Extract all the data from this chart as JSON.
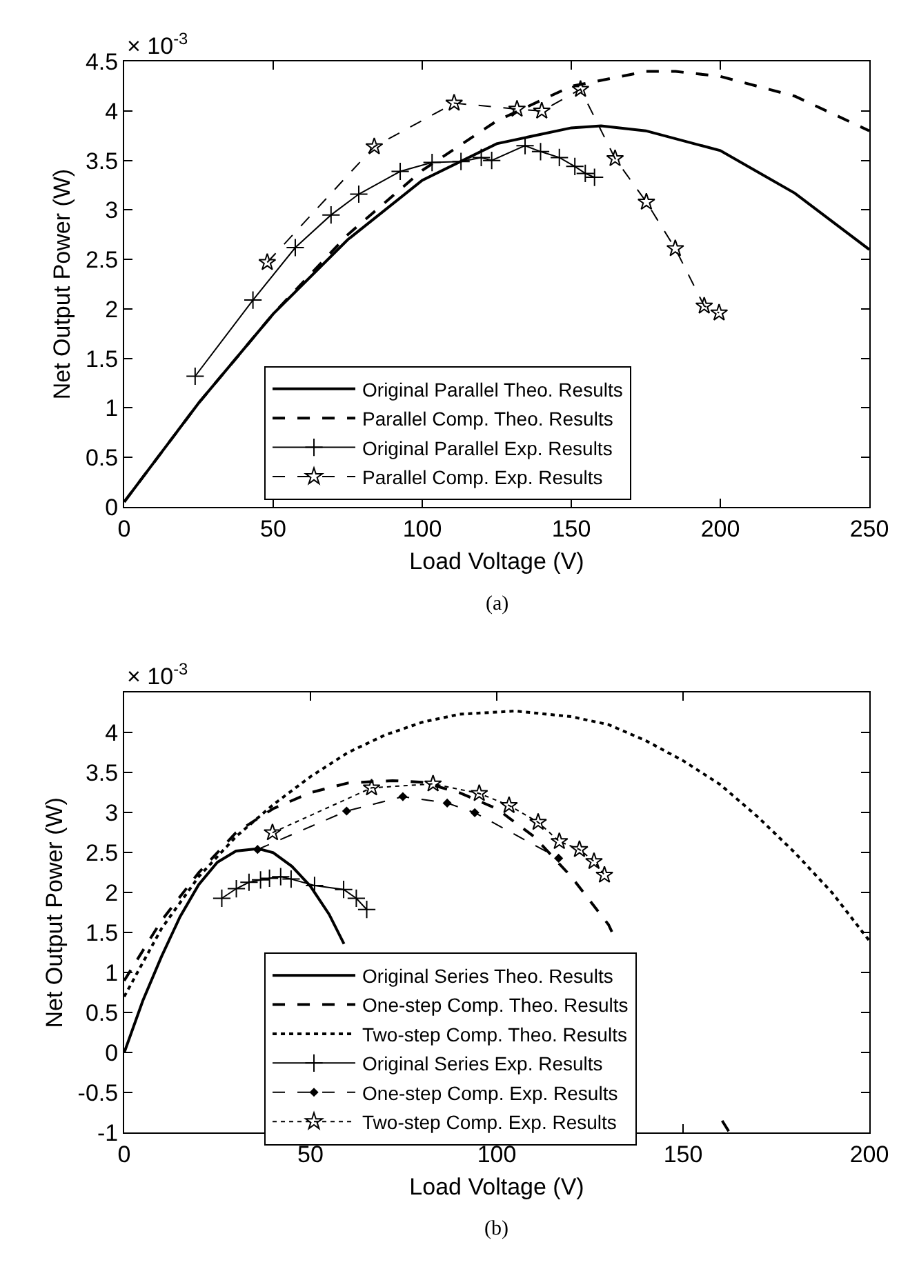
{
  "chart_data": [
    {
      "type": "line",
      "xlabel": "Load Voltage (V)",
      "ylabel": "Net Output Power (W)",
      "annotations": [
        "× 10$^{-3}$",
        "(a)"
      ],
      "xlim": [
        0,
        250
      ],
      "xticks": [
        0,
        50,
        100,
        150,
        200,
        250
      ],
      "ylim": [
        0,
        4.5
      ],
      "yticks": [
        0,
        0.5,
        1,
        1.5,
        2,
        2.5,
        3,
        3.5,
        4,
        4.5
      ],
      "legend": "bottom",
      "series": [
        {
          "name": "Original Parallel Theo. Results",
          "color": "#000000",
          "line_style": "solid",
          "marker": "none",
          "x": [
            0,
            25,
            50,
            75,
            100,
            125,
            150,
            160,
            175,
            200,
            225,
            250
          ],
          "values": [
            0.05,
            1.05,
            1.95,
            2.7,
            3.3,
            3.67,
            3.83,
            3.85,
            3.8,
            3.6,
            3.17,
            2.6
          ]
        },
        {
          "name": "Parallel Comp. Theo. Results",
          "color": "#000000",
          "line_style": "dashed",
          "marker": "none",
          "x": [
            0,
            25,
            50,
            75,
            100,
            125,
            150,
            175,
            185,
            200,
            225,
            250
          ],
          "values": [
            0.05,
            1.05,
            1.95,
            2.75,
            3.4,
            3.9,
            4.25,
            4.4,
            4.4,
            4.35,
            4.15,
            3.8
          ]
        },
        {
          "name": "Original Parallel Exp. Results",
          "color": "#000000",
          "line_style": "solid",
          "marker": "cross",
          "x": [
            23.8,
            43.2,
            57.4,
            69.4,
            78.7,
            92.6,
            103.3,
            113,
            119.8,
            123.3,
            134.5,
            139.7,
            146,
            151.2,
            154.7,
            157.8
          ],
          "values": [
            1.32,
            2.09,
            2.62,
            2.95,
            3.16,
            3.39,
            3.48,
            3.49,
            3.53,
            3.5,
            3.65,
            3.59,
            3.53,
            3.44,
            3.37,
            3.33
          ]
        },
        {
          "name": "Parallel Comp. Exp. Results",
          "color": "#000000",
          "line_style": "dashed",
          "marker": "star",
          "x": [
            48,
            83.9,
            110.7,
            131.8,
            140.1,
            153.1,
            164.7,
            175.2,
            184.9,
            194.6,
            199.6
          ],
          "values": [
            2.47,
            3.64,
            4.08,
            4.02,
            4.0,
            4.22,
            3.52,
            3.08,
            2.61,
            2.03,
            1.96
          ]
        }
      ]
    },
    {
      "type": "line",
      "xlabel": "Load Voltage (V)",
      "ylabel": "Net Output Power (W)",
      "annotations": [
        "× 10$^{-3}$",
        "(b)"
      ],
      "xlim": [
        0,
        200
      ],
      "xticks": [
        0,
        50,
        100,
        150,
        200
      ],
      "ylim": [
        -1,
        4.5
      ],
      "yticks": [
        -1,
        -0.5,
        0,
        0.5,
        1,
        1.5,
        2,
        2.5,
        3,
        3.5,
        4
      ],
      "legend": "bottom",
      "series": [
        {
          "name": "Original Series Theo. Results",
          "color": "#000000",
          "line_style": "solid",
          "marker": "none",
          "x": [
            0,
            5,
            10,
            15,
            20,
            25,
            30,
            36,
            40,
            45,
            50,
            55,
            59,
            65,
            74.5,
            76.5
          ],
          "values": [
            0,
            0.65,
            1.2,
            1.7,
            2.1,
            2.38,
            2.52,
            2.55,
            2.5,
            2.33,
            2.08,
            1.73,
            1.36,
            null,
            -0.85,
            -1
          ]
        },
        {
          "name": "One-step Comp. Theo. Results",
          "color": "#000000",
          "line_style": "dashed",
          "marker": "none",
          "x": [
            0,
            10,
            20,
            30,
            40,
            50,
            60,
            72,
            80,
            90,
            100,
            110,
            120,
            130,
            132,
            145,
            160.5,
            162.5
          ],
          "values": [
            0.9,
            1.65,
            2.25,
            2.75,
            3.05,
            3.25,
            3.37,
            3.4,
            3.38,
            3.25,
            3.05,
            2.7,
            2.2,
            1.6,
            1.4,
            null,
            -0.85,
            -1
          ]
        },
        {
          "name": "Two-step Comp. Theo. Results",
          "color": "#000000",
          "line_style": "dotted",
          "marker": "none",
          "x": [
            0,
            10,
            20,
            30,
            40,
            50,
            60,
            70,
            80,
            90,
            105,
            120,
            130,
            140,
            150,
            160,
            170,
            180,
            190,
            200
          ],
          "values": [
            0.7,
            1.55,
            2.2,
            2.7,
            3.1,
            3.45,
            3.75,
            3.97,
            4.13,
            4.23,
            4.27,
            4.2,
            4.1,
            3.9,
            3.65,
            3.35,
            2.95,
            2.5,
            2.0,
            1.4
          ]
        },
        {
          "name": "Original Series Exp. Results",
          "color": "#000000",
          "line_style": "solid",
          "marker": "cross",
          "x": [
            26.2,
            30.1,
            33.5,
            36.6,
            39,
            42,
            44.8,
            51.1,
            58.9,
            62.3,
            65.1
          ],
          "values": [
            1.93,
            2.05,
            2.13,
            2.16,
            2.18,
            2.2,
            2.17,
            2.09,
            2.04,
            1.93,
            1.79
          ]
        },
        {
          "name": "One-step Comp. Exp. Results",
          "color": "#000000",
          "line_style": "dashed",
          "marker": "diamond",
          "x": [
            35.8,
            59.7,
            74.8,
            86.7,
            94.1,
            116.6
          ],
          "values": [
            2.54,
            3.02,
            3.2,
            3.12,
            3.0,
            2.43
          ]
        },
        {
          "name": "Two-step Comp. Exp. Results",
          "color": "#000000",
          "line_style": "dotted",
          "marker": "star",
          "x": [
            39.8,
            66.4,
            82.9,
            95.3,
            103.3,
            111.1,
            116.8,
            122.2,
            126.1,
            128.9
          ],
          "values": [
            2.75,
            3.31,
            3.36,
            3.24,
            3.09,
            2.88,
            2.64,
            2.54,
            2.39,
            2.22
          ]
        }
      ]
    }
  ]
}
